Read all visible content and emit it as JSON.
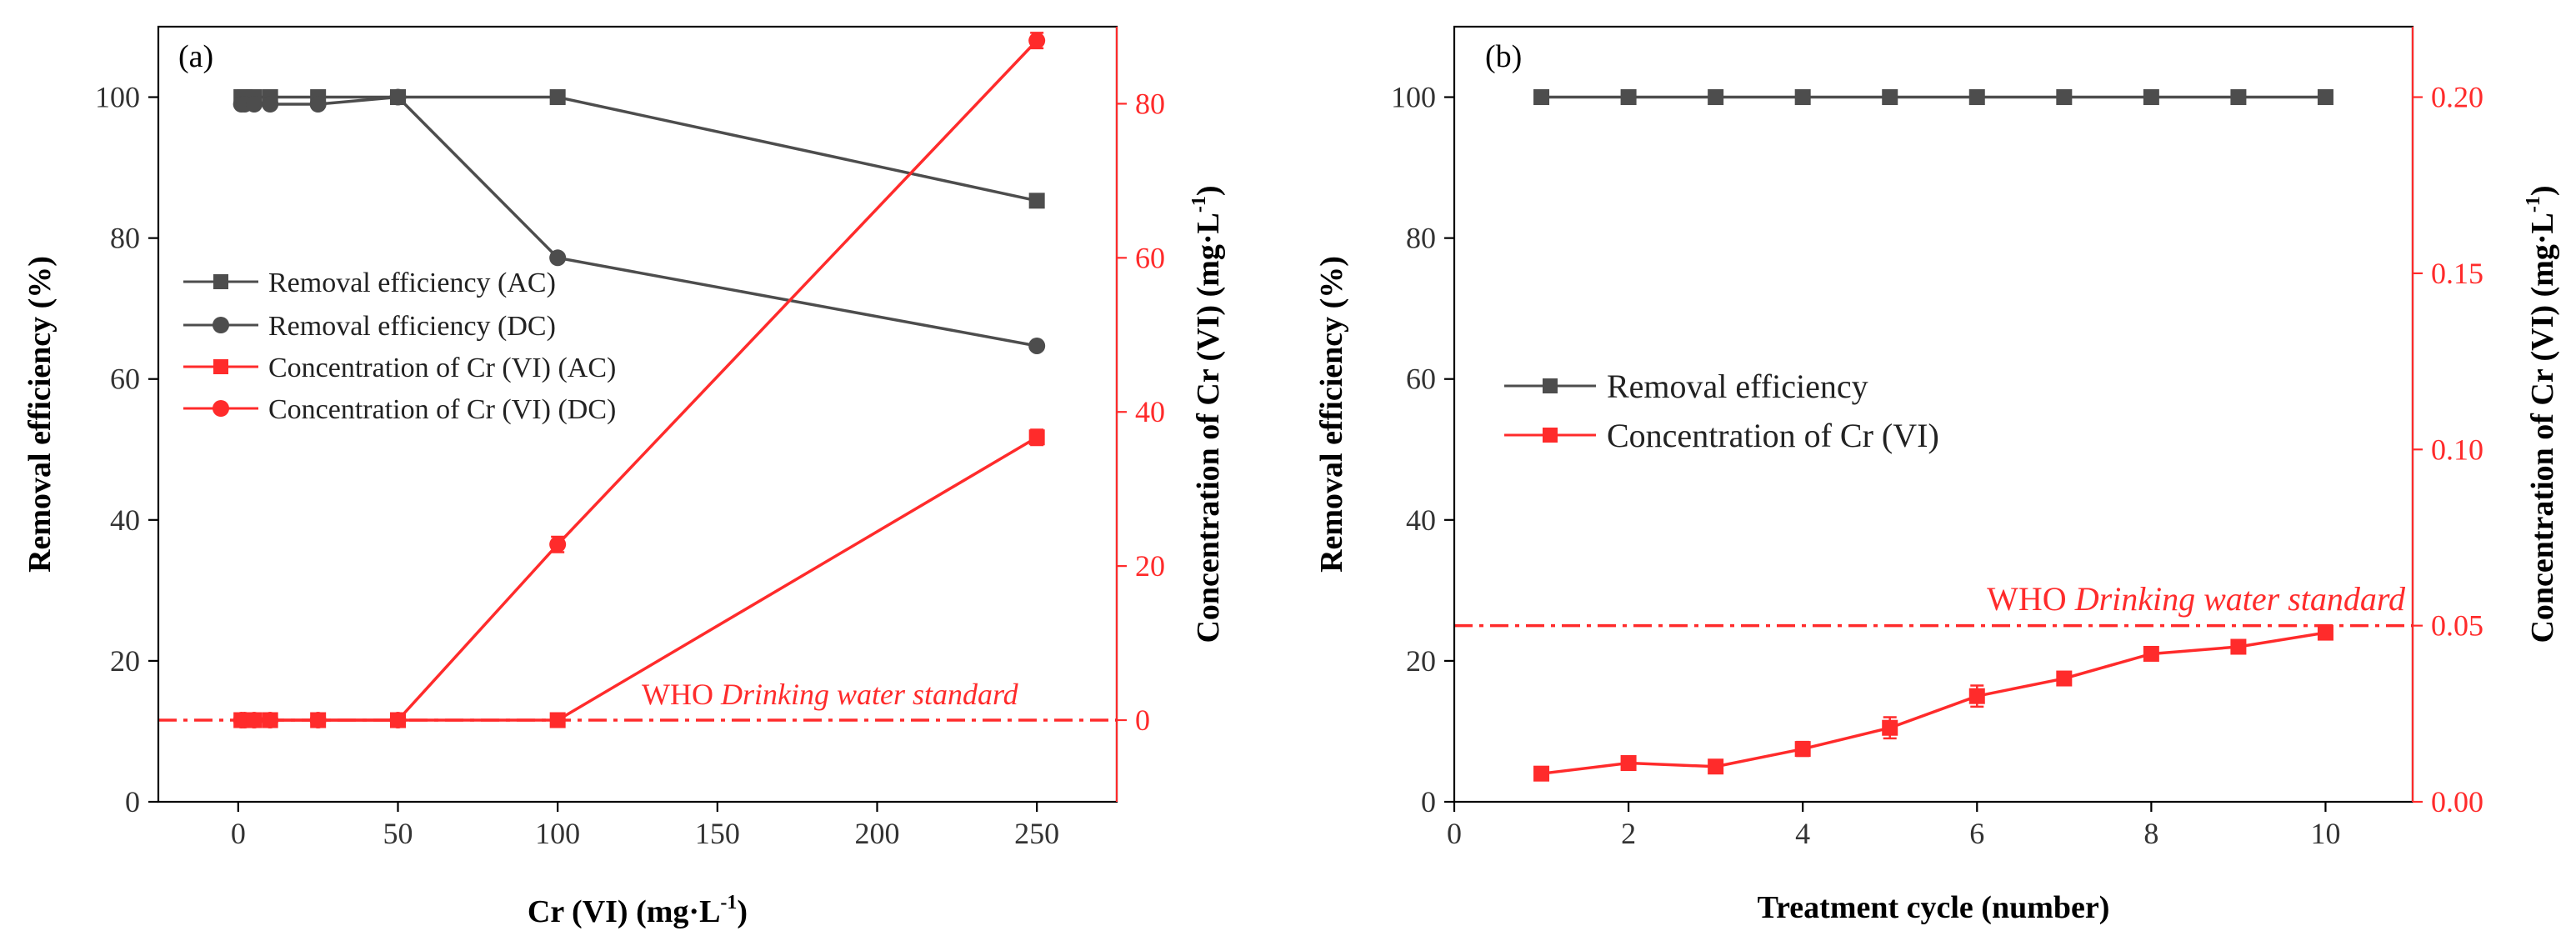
{
  "colors": {
    "black_series": "#4d4d4d",
    "red_series": "#ff2b2b",
    "axis": "#000000"
  },
  "chart_data": [
    {
      "type": "line",
      "panel_label": "(a)",
      "xlabel_main": "Cr (VI) (mg·L",
      "xlabel_sup": "-1",
      "xlabel_end": ")",
      "ylabel_left": "Removal efficiency (%)",
      "ylabel_right_main": "Concentration of Cr (VI) (mg·L",
      "ylabel_right_sup": "-1",
      "ylabel_right_end": ")",
      "xlim": [
        -25,
        275
      ],
      "ylim_left": [
        0,
        110
      ],
      "ylim_right": [
        -10.6,
        90
      ],
      "xticks": [
        0,
        50,
        100,
        150,
        200,
        250
      ],
      "yticks_left": [
        0,
        20,
        40,
        60,
        80,
        100
      ],
      "yticks_right": [
        0,
        20,
        40,
        60,
        80
      ],
      "reference_line": {
        "value": 0,
        "axis": "right",
        "style": "dash-dot",
        "label_plain": "WHO ",
        "label_italic": "Drinking water standard"
      },
      "series": [
        {
          "name": "Removal efficiency (AC)",
          "axis": "left",
          "color": "#4d4d4d",
          "marker": "square",
          "x": [
            1,
            2,
            5,
            10,
            25,
            50,
            100,
            250
          ],
          "y": [
            100,
            100,
            100,
            100,
            100,
            100,
            100,
            85.3
          ]
        },
        {
          "name": "Removal efficiency (DC)",
          "axis": "left",
          "color": "#4d4d4d",
          "marker": "circle",
          "x": [
            1,
            2,
            5,
            10,
            25,
            50,
            100,
            250
          ],
          "y": [
            99,
            99,
            99,
            99,
            99,
            100,
            77.2,
            64.7
          ]
        },
        {
          "name": "Concentration of Cr (VI) (AC)",
          "axis": "right",
          "color": "#ff2b2b",
          "marker": "square",
          "x": [
            1,
            2,
            5,
            10,
            25,
            50,
            100,
            250
          ],
          "y": [
            0,
            0,
            0,
            0,
            0,
            0,
            0,
            36.7
          ],
          "err": [
            0,
            0,
            0,
            0,
            0,
            0,
            0,
            1.0
          ]
        },
        {
          "name": "Concentration of Cr (VI) (DC)",
          "axis": "right",
          "color": "#ff2b2b",
          "marker": "circle",
          "x": [
            1,
            2,
            5,
            10,
            25,
            50,
            100,
            250
          ],
          "y": [
            0,
            0,
            0,
            0,
            0,
            0,
            22.8,
            88.2
          ],
          "err": [
            0,
            0,
            0,
            0,
            0,
            0,
            1.0,
            1.0
          ]
        }
      ]
    },
    {
      "type": "line",
      "panel_label": "(b)",
      "xlabel": "Treatment cycle (number)",
      "ylabel_left": "Removal efficiency (%)",
      "ylabel_right_main": "Concentration of Cr (VI) (mg·L",
      "ylabel_right_sup": "-1",
      "ylabel_right_end": ")",
      "xlim": [
        0,
        11
      ],
      "ylim_left": [
        0,
        110
      ],
      "ylim_right": [
        0,
        0.22
      ],
      "xticks": [
        0,
        2,
        4,
        6,
        8,
        10
      ],
      "yticks_left": [
        0,
        20,
        40,
        60,
        80,
        100
      ],
      "yticks_right": [
        "0.00",
        "0.05",
        "0.10",
        "0.15",
        "0.20"
      ],
      "reference_line": {
        "value": 0.05,
        "axis": "right",
        "style": "dash-dot",
        "label_plain": "WHO ",
        "label_italic": "Drinking water standard"
      },
      "series": [
        {
          "name": "Removal efficiency",
          "axis": "left",
          "color": "#4d4d4d",
          "marker": "square",
          "x": [
            1,
            2,
            3,
            4,
            5,
            6,
            7,
            8,
            9,
            10
          ],
          "y": [
            100,
            100,
            100,
            100,
            100,
            100,
            100,
            100,
            100,
            100
          ]
        },
        {
          "name": "Concentration of Cr (VI)",
          "axis": "right",
          "color": "#ff2b2b",
          "marker": "square",
          "x": [
            1,
            2,
            3,
            4,
            5,
            6,
            7,
            8,
            9,
            10
          ],
          "y": [
            0.008,
            0.011,
            0.01,
            0.015,
            0.021,
            0.03,
            0.035,
            0.042,
            0.044,
            0.048
          ],
          "err": [
            0.0005,
            0.0005,
            0.0005,
            0.002,
            0.003,
            0.003,
            0.001,
            0.001,
            0.001,
            0.001
          ]
        }
      ]
    }
  ]
}
